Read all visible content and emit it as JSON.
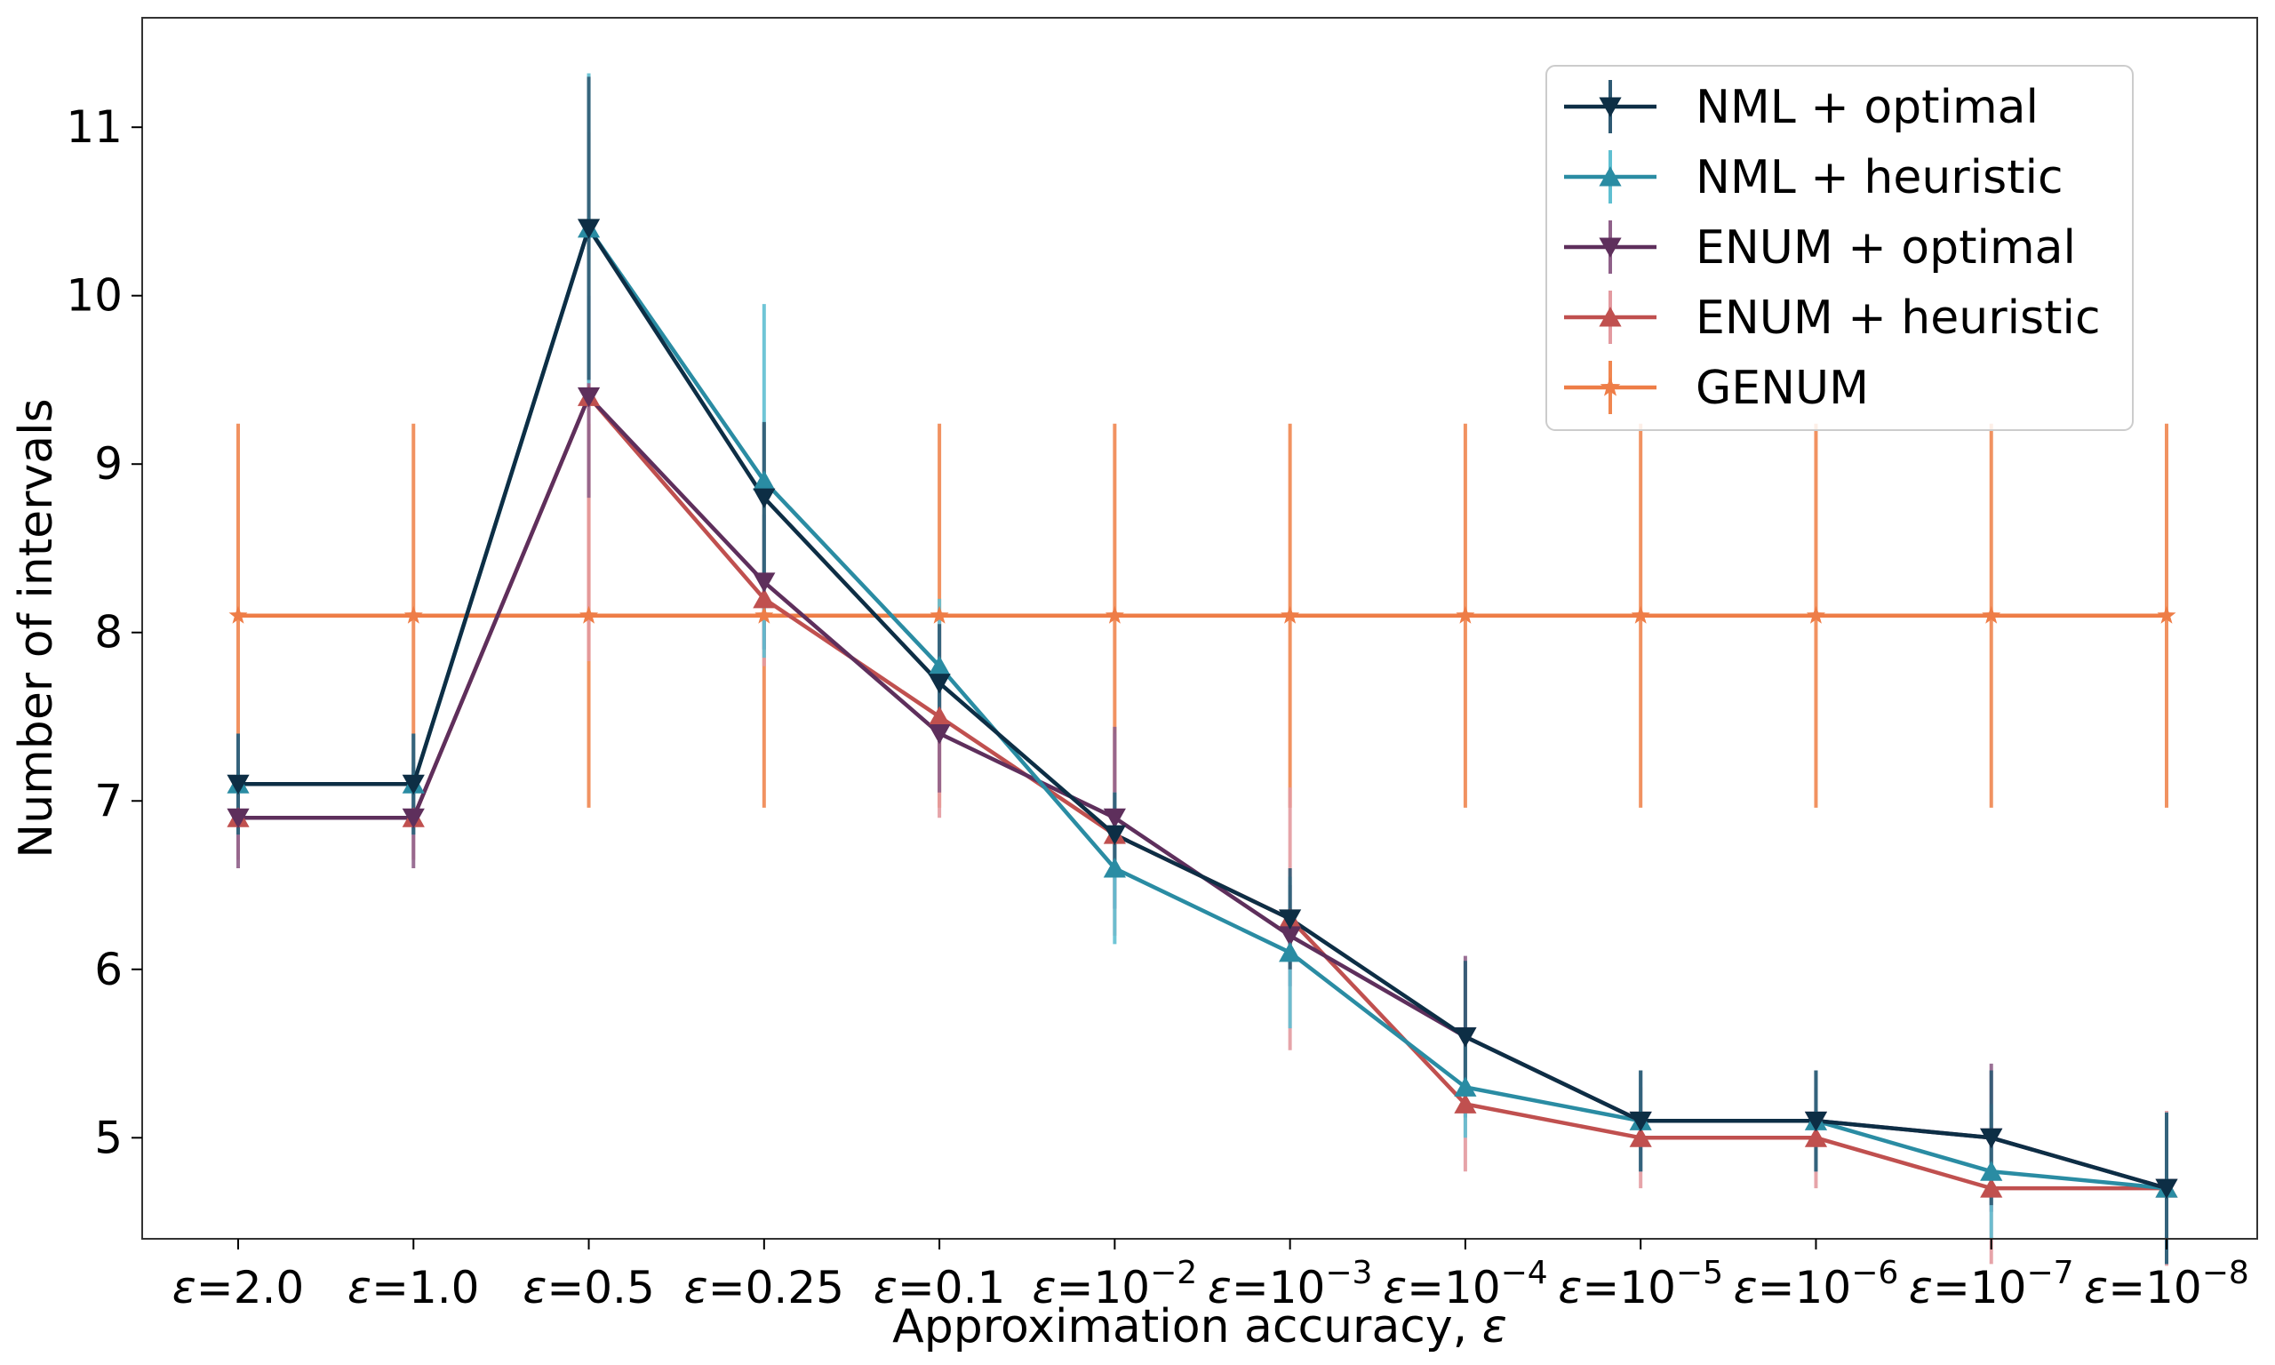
{
  "chart_data": {
    "type": "line",
    "title": "",
    "xlabel": "Approximation accuracy, ",
    "xlabel_symbol": "ε",
    "ylabel": "Number of intervals",
    "ylim": [
      4.4,
      11.65
    ],
    "yticks": [
      5,
      6,
      7,
      8,
      9,
      10,
      11
    ],
    "categories": [
      {
        "sym": "ε",
        "base": "=2.0",
        "exp": ""
      },
      {
        "sym": "ε",
        "base": "=1.0",
        "exp": ""
      },
      {
        "sym": "ε",
        "base": "=0.5",
        "exp": ""
      },
      {
        "sym": "ε",
        "base": "=0.25",
        "exp": ""
      },
      {
        "sym": "ε",
        "base": "=0.1",
        "exp": ""
      },
      {
        "sym": "ε",
        "base": "=10",
        "exp": "−2"
      },
      {
        "sym": "ε",
        "base": "=10",
        "exp": "−3"
      },
      {
        "sym": "ε",
        "base": "=10",
        "exp": "−4"
      },
      {
        "sym": "ε",
        "base": "=10",
        "exp": "−5"
      },
      {
        "sym": "ε",
        "base": "=10",
        "exp": "−6"
      },
      {
        "sym": "ε",
        "base": "=10",
        "exp": "−7"
      },
      {
        "sym": "ε",
        "base": "=10",
        "exp": "−8"
      }
    ],
    "series": [
      {
        "name": "NML + optimal",
        "color": "#0d2e45",
        "errcolor": "#2f5a73",
        "marker": "triangle-down",
        "values": [
          7.1,
          7.1,
          10.4,
          8.8,
          7.7,
          6.8,
          6.3,
          5.6,
          5.1,
          5.1,
          5.0,
          4.7
        ],
        "errors": [
          0.3,
          0.3,
          0.9,
          0.45,
          0.35,
          0.25,
          0.3,
          0.45,
          0.3,
          0.3,
          0.4,
          0.45
        ]
      },
      {
        "name": "NML + heuristic",
        "color": "#2a8ca3",
        "errcolor": "#5fbfd1",
        "marker": "triangle-up",
        "values": [
          7.1,
          7.1,
          10.4,
          8.9,
          7.8,
          6.6,
          6.1,
          5.3,
          5.1,
          5.1,
          4.8,
          4.7
        ],
        "errors": [
          0.3,
          0.3,
          0.92,
          1.05,
          0.4,
          0.45,
          0.45,
          0.3,
          0.3,
          0.3,
          0.4,
          0.45
        ]
      },
      {
        "name": "ENUM + optimal",
        "color": "#5e2f5c",
        "errcolor": "#8f6089",
        "marker": "triangle-down",
        "values": [
          6.9,
          6.9,
          9.4,
          8.3,
          7.4,
          6.9,
          6.2,
          5.6,
          5.1,
          5.1,
          5.0,
          4.7
        ],
        "errors": [
          0.3,
          0.3,
          0.6,
          0.4,
          0.35,
          0.54,
          0.3,
          0.48,
          0.3,
          0.3,
          0.44,
          0.45
        ]
      },
      {
        "name": "ENUM + heuristic",
        "color": "#c0504f",
        "errcolor": "#e39aa0",
        "marker": "triangle-up",
        "values": [
          6.9,
          6.9,
          9.4,
          8.2,
          7.5,
          6.8,
          6.3,
          5.2,
          5.0,
          5.0,
          4.7,
          4.7
        ],
        "errors": [
          0.25,
          0.25,
          1.57,
          0.4,
          0.6,
          0.6,
          0.78,
          0.4,
          0.3,
          0.3,
          0.45,
          0.46
        ]
      },
      {
        "name": "GENUM",
        "color": "#ee7d47",
        "errcolor": "#f08650",
        "marker": "star",
        "values": [
          8.1,
          8.1,
          8.1,
          8.1,
          8.1,
          8.1,
          8.1,
          8.1,
          8.1,
          8.1,
          8.1,
          8.1
        ],
        "errors": [
          1.14,
          1.14,
          1.14,
          1.14,
          1.14,
          1.14,
          1.14,
          1.14,
          1.14,
          1.14,
          1.14,
          1.14
        ]
      }
    ],
    "legend": "top-right",
    "grid": false
  }
}
